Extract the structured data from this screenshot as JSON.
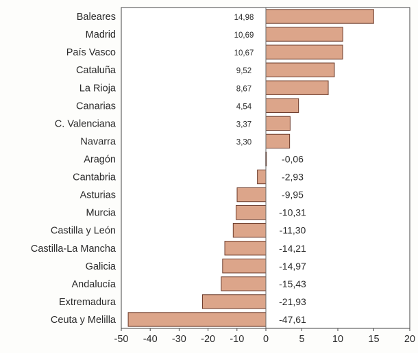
{
  "chart_data": {
    "type": "bar",
    "orientation": "horizontal",
    "categories": [
      "Baleares",
      "Madrid",
      "País Vasco",
      "Cataluña",
      "La Rioja",
      "Canarias",
      "C. Valenciana",
      "Navarra",
      "Aragón",
      "Cantabria",
      "Asturias",
      "Murcia",
      "Castilla y León",
      "Castilla-La Mancha",
      "Galicia",
      "Andalucía",
      "Extremadura",
      "Ceuta y Melilla"
    ],
    "values": [
      14.98,
      10.69,
      10.67,
      9.52,
      8.67,
      4.54,
      3.37,
      3.3,
      -0.06,
      -2.93,
      -9.95,
      -10.31,
      -11.3,
      -14.21,
      -14.97,
      -15.43,
      -21.93,
      -47.61
    ],
    "value_labels": [
      "14,98",
      "10,69",
      "10,67",
      "9,52",
      "8,67",
      "4,54",
      "3,37",
      "3,30",
      "-0,06",
      "-2,93",
      "-9,95",
      "-10,31",
      "-11,30",
      "-14,21",
      "-14,97",
      "-15,43",
      "-21,93",
      "-47,61"
    ],
    "xlim": [
      -50,
      20
    ],
    "xticks": [
      -50,
      -40,
      -30,
      -20,
      -10,
      0,
      5,
      10,
      15,
      20
    ],
    "xtick_labels": [
      "-50",
      "-40",
      "-30",
      "-20",
      "-10",
      "0",
      "5",
      "10",
      "15",
      "20"
    ],
    "xscale": "piecewise linear (negative side compressed)",
    "bar_color": "#dca58a",
    "bar_edge_color": "#6b3a2a",
    "grid": false,
    "legend": "none"
  }
}
